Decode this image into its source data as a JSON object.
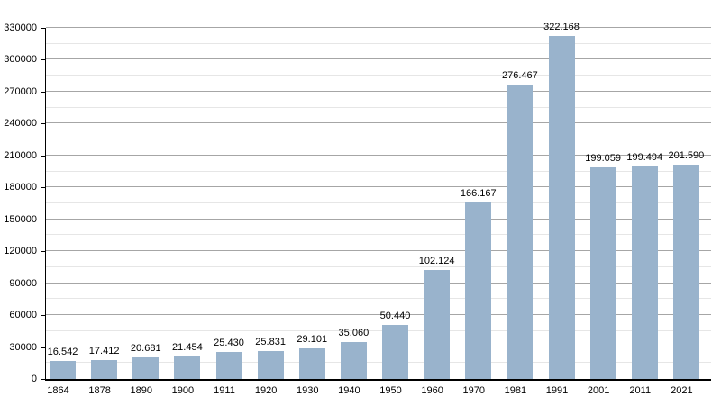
{
  "chart_data": {
    "type": "bar",
    "categories": [
      "1864",
      "1878",
      "1890",
      "1900",
      "1911",
      "1920",
      "1930",
      "1940",
      "1950",
      "1960",
      "1970",
      "1981",
      "1991",
      "2001",
      "2011",
      "2021"
    ],
    "values": [
      16542,
      17412,
      20681,
      21454,
      25430,
      25831,
      29101,
      35060,
      50440,
      102124,
      166167,
      276467,
      322168,
      199059,
      199494,
      201590
    ],
    "value_labels": [
      "16.542",
      "17.412",
      "20.681",
      "21.454",
      "25.430",
      "25.831",
      "29.101",
      "35.060",
      "50.440",
      "102.124",
      "166.167",
      "276.467",
      "322.168",
      "199.059",
      "199.494",
      "201.590"
    ],
    "y_tick_labels": [
      "0",
      "30000",
      "60000",
      "90000",
      "120000",
      "150000",
      "180000",
      "210000",
      "240000",
      "270000",
      "300000",
      "330000"
    ],
    "ylim": [
      0,
      330000
    ],
    "y_major_step": 30000,
    "y_minor_step": 15000,
    "grid": true,
    "legend_position": "none",
    "xlabel": "",
    "ylabel": "",
    "colors": {
      "bar": "#99b3cc",
      "grid_major": "#a6a6a6",
      "grid_minor": "#e6e6e6",
      "axis": "#000000",
      "text": "#000000",
      "background": "#ffffff"
    }
  }
}
